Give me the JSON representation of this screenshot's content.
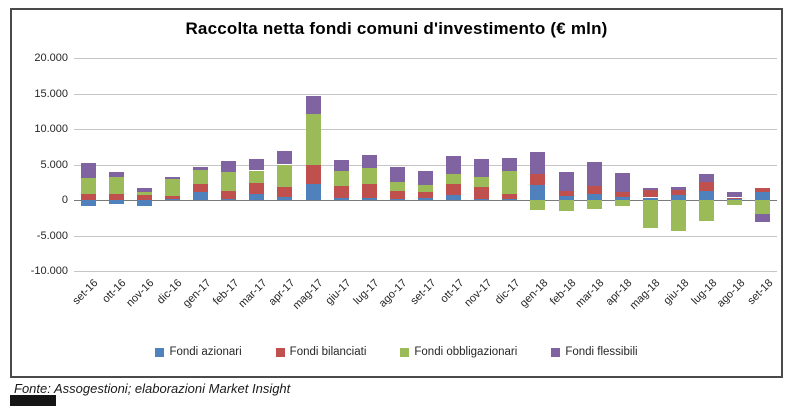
{
  "header": {
    "title": "Raccolta netta fondi comuni d'investimento (€ mln)"
  },
  "footer": {
    "text": "Fonte: Assogestioni; elaborazioni Market Insight"
  },
  "chart_data": {
    "type": "bar",
    "stacked": true,
    "title": "Raccolta netta fondi comuni d'investimento (€ mln)",
    "xlabel": "",
    "ylabel": "",
    "ylim": [
      -10000,
      20000
    ],
    "ytick_step": 5000,
    "ytick_labels": [
      "20.000",
      "15.000",
      "10.000",
      "5.000",
      "0",
      "-5.000",
      "-10.000"
    ],
    "grid": true,
    "legend_position": "bottom",
    "gridline_color": "#c6c6c6",
    "zeroline_color": "#7a7a7a",
    "categories": [
      "set-16",
      "ott-16",
      "nov-16",
      "dic-16",
      "gen-17",
      "feb-17",
      "mar-17",
      "apr-17",
      "mag-17",
      "giu-17",
      "lug-17",
      "ago-17",
      "set-17",
      "ott-17",
      "nov-17",
      "dic-17",
      "gen-18",
      "feb-18",
      "mar-18",
      "apr-18",
      "mag-18",
      "giu-18",
      "lug-18",
      "ago-18",
      "set-18"
    ],
    "series": [
      {
        "name": "Fondi azionari",
        "color": "#4F81BD",
        "values": [
          -800,
          -550,
          -800,
          100,
          1150,
          200,
          850,
          400,
          2300,
          300,
          300,
          100,
          300,
          750,
          150,
          100,
          2100,
          600,
          850,
          450,
          350,
          700,
          1300,
          100,
          1150
        ]
      },
      {
        "name": "Fondi bilanciati",
        "color": "#C0504D",
        "values": [
          900,
          850,
          700,
          500,
          1100,
          1100,
          1600,
          1400,
          2650,
          1700,
          1900,
          1200,
          800,
          1500,
          1650,
          750,
          1600,
          700,
          1150,
          700,
          1000,
          700,
          1200,
          250,
          600
        ]
      },
      {
        "name": "Fondi obbligazionari",
        "color": "#9BBB59",
        "values": [
          2250,
          2350,
          450,
          2350,
          2000,
          2700,
          1700,
          3200,
          7200,
          2100,
          2300,
          1300,
          950,
          1400,
          1500,
          3200,
          -1400,
          -1600,
          -1250,
          -800,
          -3950,
          -4400,
          -2900,
          -750,
          -2000
        ]
      },
      {
        "name": "Fondi flessibili",
        "color": "#8064A2",
        "values": [
          2100,
          800,
          600,
          300,
          350,
          1550,
          1650,
          1850,
          2550,
          1500,
          1800,
          2050,
          2100,
          2550,
          2550,
          1900,
          3050,
          2650,
          3350,
          2600,
          300,
          450,
          1150,
          750,
          -1050
        ]
      }
    ]
  }
}
